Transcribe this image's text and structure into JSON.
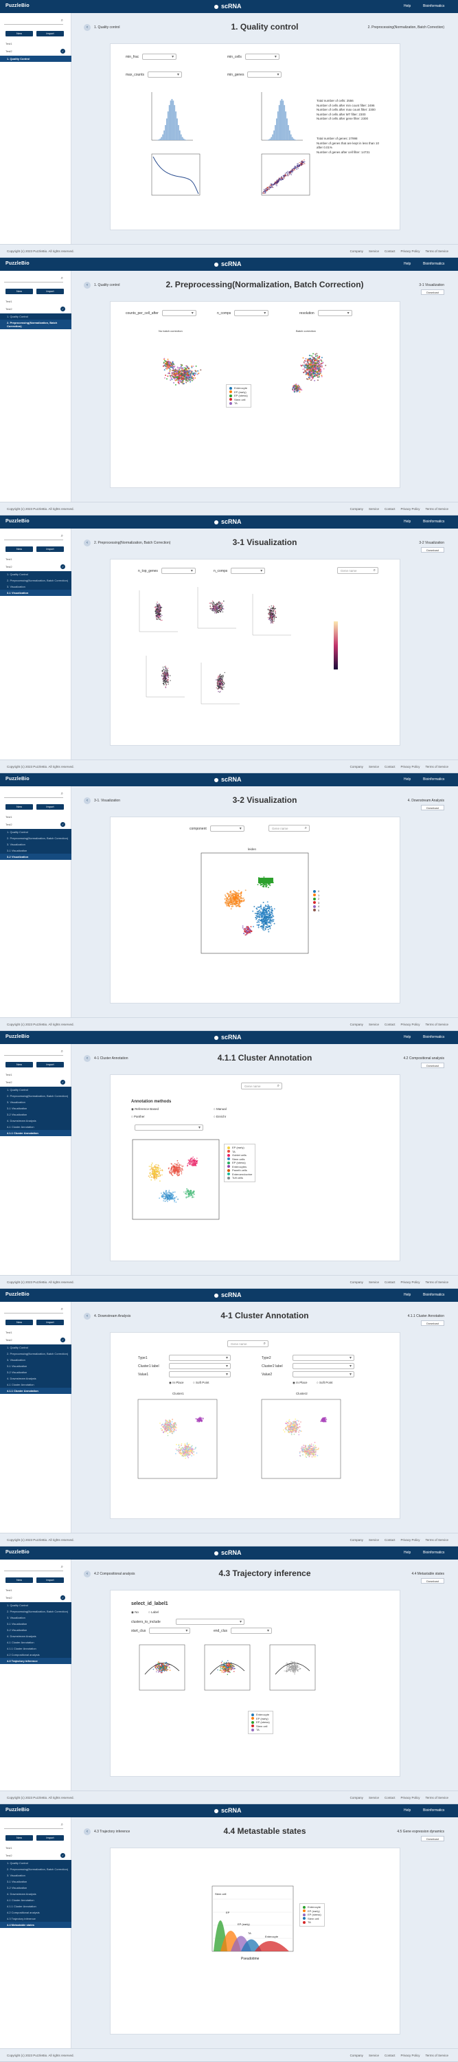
{
  "brand": "PuzzleBio",
  "app_title": "scRNA",
  "topbar": {
    "help": "Help",
    "user": "Bioinformatics"
  },
  "sidebar": {
    "new": "New",
    "import": "Import",
    "group1": "Test1",
    "group2": "Test2"
  },
  "sidebar_screens": [
    [
      "1. Quality Control"
    ],
    [
      "1. Quality Control",
      "2. Preprocessing(Normalization, Batch Correction)"
    ],
    [
      "1. Quality Control",
      "2. Preprocessing(Normalization, Batch Correction)",
      "3. Visualization",
      "3-1 Visualization"
    ],
    [
      "1. Quality Control",
      "2. Preprocessing(Normalization, Batch Correction)",
      "3. Visualization",
      "3-1 Visualization",
      "3-2 Visualization"
    ],
    [
      "1. Quality Control",
      "2. Preprocessing(Normalization, Batch Correction)",
      "3. Visualization",
      "3-1 Visualization",
      "3-2 Visualization",
      "4. Downstream Analysis",
      "4-1 Cluster Annotation",
      "4.1.1 Cluster Annotation"
    ],
    [
      "1. Quality Control",
      "2. Preprocessing(Normalization, Batch Correction)",
      "3. Visualization",
      "3-1 Visualization",
      "3-2 Visualization",
      "4. Downstream Analysis",
      "4-1 Cluster Annotation",
      "4.1.1 Cluster Annotation"
    ],
    [
      "1. Quality Control",
      "2. Preprocessing(Normalization, Batch Correction)",
      "3. Visualization",
      "3-1 Visualization",
      "3-2 Visualization",
      "4. Downstream Analysis",
      "4-1 Cluster Annotation",
      "4.1.1 Cluster Annotation",
      "4.2 Compositional analysis",
      "4.3 Trajectory inference"
    ],
    [
      "1. Quality Control",
      "2. Preprocessing(Normalization, Batch Correction)",
      "3. Visualization",
      "3-1 Visualization",
      "3-2 Visualization",
      "4. Downstream Analysis",
      "4-1 Cluster Annotation",
      "4.1.1 Cluster Annotation",
      "4.2 Compositional analysis",
      "4.3 Trajectory inference",
      "4.4 Metastable states"
    ]
  ],
  "screens": [
    {
      "prev": "1. Quality control",
      "title": "1. Quality control",
      "next": "2. Preprocessing(Normalization, Batch Correction)",
      "download": ""
    },
    {
      "prev": "1. Quality control",
      "title": "2. Preprocessing(Normalization, Batch Correction)",
      "next": "3-1 Visualization",
      "download": "Download"
    },
    {
      "prev": "2. Preprocessing(Normalization, Batch Correction)",
      "title": "3-1 Visualization",
      "next": "3-2 Visualization",
      "download": "Download"
    },
    {
      "prev": "3-1. Visualization",
      "title": "3-2 Visualization",
      "next": "4. Downstream Analysis",
      "download": "Download"
    },
    {
      "prev": "4-1 Cluster Annotation",
      "title": "4.1.1 Cluster Annotation",
      "next": "4.2 Compositional analysis",
      "download": "Download"
    },
    {
      "prev": "4. Downstream Analysis",
      "title": "4-1 Cluster Annotation",
      "next": "4.1.1 Cluster Annotation",
      "download": "Download"
    },
    {
      "prev": "4.2 Compositional analysis",
      "title": "4.3 Trajectory inference",
      "next": "4.4 Metastable states",
      "download": "Download"
    },
    {
      "prev": "4.3 Trajectory inference",
      "title": "4.4 Metastable states",
      "next": "4.5 Gene expression dynamics",
      "download": "Download"
    }
  ],
  "footer": {
    "copyright": "Copyright (c) 2023 PuzzleBio. All rights reserved.",
    "links": [
      "Company",
      "Service",
      "Contact",
      "Privacy Policy",
      "Terms of Service"
    ]
  },
  "qc": {
    "fields": [
      "min_frac",
      "min_cells",
      "max_counts",
      "min_genes"
    ],
    "stats1": [
      "Total number of cells: 2556",
      "Number of cells after min count filter: 2496",
      "Number of cells after max count filter: 2300",
      "Number of cells after MT filter: 2300",
      "Number of cells after gene filter: 2300"
    ],
    "stats2": [
      "Total number of genes: 27998",
      "Number of genes that are kept in less than 10",
      "after 0.01%",
      "Number of genes after cell filter: 14731"
    ]
  },
  "prep": {
    "fields": [
      "counts_per_cell_after",
      "n_comps",
      "resolution"
    ],
    "left_title": "No batch correction",
    "right_title": "Batch correction",
    "legend": [
      "Enterocyte",
      "EP (early)",
      "EP (stress)",
      "Stem cell",
      "TA"
    ]
  },
  "vis1": {
    "fields": [
      "n_top_genes",
      "n_comps"
    ],
    "search_placeholder": "Gene name"
  },
  "vis2": {
    "field": "component",
    "search_placeholder": "Gene name",
    "plot_title": "leiden",
    "legend": [
      "0",
      "1",
      "2",
      "3",
      "4",
      "5"
    ]
  },
  "ann411": {
    "search_placeholder": "Gene name",
    "heading": "Annotation methods",
    "options": [
      "Reference Based",
      "Manual",
      "Panther",
      "Enrichr"
    ],
    "legend": [
      "EP (early)",
      "TA",
      "Goblet cells",
      "Stem cells",
      "EP (stress)",
      "Enterocytes",
      "Paneth cells",
      "Enteroendocrine",
      "Tuft cells"
    ]
  },
  "ann41": {
    "search_placeholder": "Gene name",
    "left_fields": [
      "Type1",
      "Cluster1 label",
      "Value1"
    ],
    "right_fields": [
      "Type2",
      "Cluster2 label",
      "Value2"
    ],
    "radio": [
      "In Place",
      "Soft Point"
    ],
    "plot_titles": [
      "Cluster1",
      "Cluster2"
    ]
  },
  "traj": {
    "heading": "select_id_label1",
    "radio": [
      "No",
      "Label"
    ],
    "field1": "clusters_to_include",
    "field2a": "start_clus",
    "field2b": "end_clus",
    "legend": [
      "Enterocyte",
      "EP (early)",
      "EP (stress)",
      "Stem cell",
      "TA"
    ]
  },
  "meta": {
    "chart_data": {
      "type": "area",
      "xlabel": "Pseudotime",
      "ylabel": "Density",
      "series": [
        {
          "name": "Enterocyte"
        },
        {
          "name": "EP (early)"
        },
        {
          "name": "EP (stress)"
        },
        {
          "name": "Stem cell"
        },
        {
          "name": "TA"
        }
      ],
      "labels": [
        "Stem cell",
        "EP",
        "EP (early)",
        "TA",
        "Enterocyte"
      ]
    },
    "legend": [
      "Enterocyte",
      "EP (early)",
      "EP (stress)",
      "Stem cell",
      "TA"
    ]
  },
  "colors": {
    "primary": "#0d3b66",
    "page": "#e7edf4"
  }
}
